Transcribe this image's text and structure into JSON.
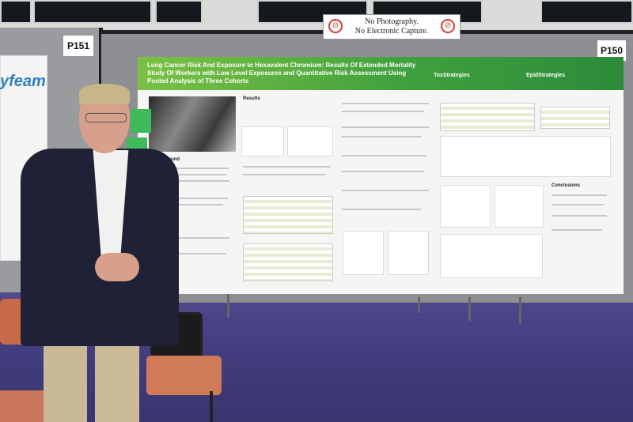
{
  "scene": {
    "description_tags": [
      "poster-session",
      "presenter",
      "conference-hall"
    ]
  },
  "signs": {
    "board_left": "P151",
    "board_right": "P150",
    "notice_line1": "No Photography.",
    "notice_line2": "No Electronic Capture."
  },
  "poster": {
    "title": "Lung Cancer Risk And Exposure to Hexavalent Chromium: Results Of Extended Mortality Study Of Workers with Low Level Exposures and Quantitative Risk Assessment Using Pooled Analysis of Three Cohorts",
    "logos": [
      "ToxStrategies",
      "EpidStrategies"
    ],
    "sections": [
      "Results",
      "Background",
      "Conclusions"
    ],
    "left_poster_logo": "yfeam"
  },
  "colors": {
    "banner_green": "#3fa13d",
    "carpet": "#3f3a7a",
    "board_gray": "#8e8f92"
  }
}
